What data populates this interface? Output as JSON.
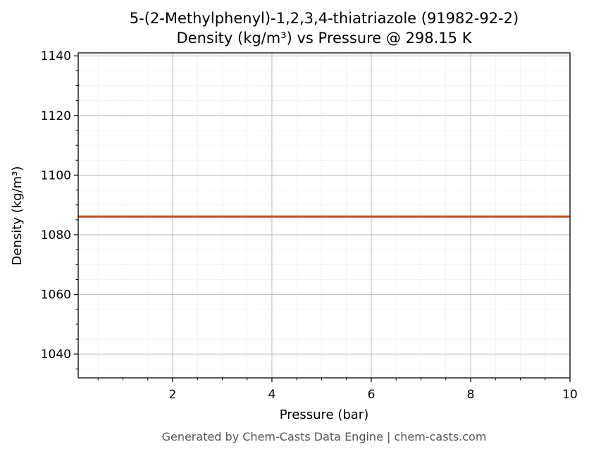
{
  "chart_data": {
    "type": "line",
    "title": "5-(2-Methylphenyl)-1,2,3,4-thiatriazole (91982-92-2)",
    "subtitle": "Density (kg/m³) vs Pressure @ 298.15 K",
    "xlabel": "Pressure (bar)",
    "ylabel": "Density (kg/m³)",
    "xlim": [
      0.1,
      10
    ],
    "ylim": [
      1032,
      1141
    ],
    "x_ticks": [
      2,
      4,
      6,
      8,
      10
    ],
    "y_ticks": [
      1040,
      1060,
      1080,
      1100,
      1120,
      1140
    ],
    "grid": true,
    "legend": "none",
    "series": [
      {
        "color": "#c0522a",
        "x": [
          0.1,
          1,
          2,
          3,
          4,
          5,
          6,
          7,
          8,
          9,
          10
        ],
        "y": [
          1086.1,
          1086.1,
          1086.1,
          1086.1,
          1086.1,
          1086.1,
          1086.1,
          1086.1,
          1086.1,
          1086.1,
          1086.1
        ]
      }
    ]
  },
  "footer": "Generated by Chem-Casts Data Engine | chem-casts.com"
}
